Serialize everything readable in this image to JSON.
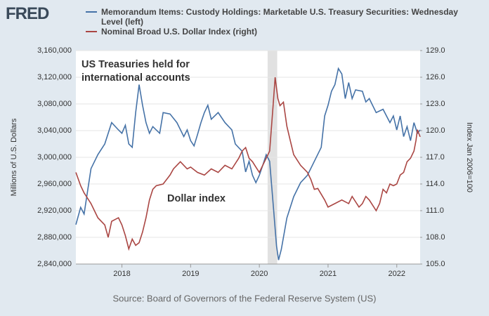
{
  "logo": "FRED",
  "chart_data": {
    "type": "line",
    "source": "Source: Board of Governors of the Federal Reserve System (US)",
    "ylabel": "Millions of U.S. Dollars",
    "y2label": "Index Jan 2006=100",
    "annotations": [
      {
        "lines": [
          "US Treasuries held for",
          "international accounts"
        ],
        "color": "#4572a7"
      },
      {
        "lines": [
          "Dollar index"
        ],
        "color": "#aa4643"
      }
    ],
    "xlim": [
      2017.33,
      2022.34
    ],
    "xticks": [
      2018,
      2019,
      2020,
      2021,
      2022
    ],
    "ylim": [
      2840000,
      3160000
    ],
    "yticks": [
      {
        "value": 2840000,
        "label": "2,840,000"
      },
      {
        "value": 2880000,
        "label": "2,880,000"
      },
      {
        "value": 2920000,
        "label": "2,920,000"
      },
      {
        "value": 2960000,
        "label": "2,960,000"
      },
      {
        "value": 3000000,
        "label": "3,000,000"
      },
      {
        "value": 3040000,
        "label": "3,040,000"
      },
      {
        "value": 3080000,
        "label": "3,080,000"
      },
      {
        "value": 3120000,
        "label": "3,120,000"
      },
      {
        "value": 3160000,
        "label": "3,160,000"
      }
    ],
    "y2lim": [
      105,
      129
    ],
    "y2ticks": [
      {
        "value": 105,
        "label": "105.0"
      },
      {
        "value": 108,
        "label": "108.0"
      },
      {
        "value": 111,
        "label": "111.0"
      },
      {
        "value": 114,
        "label": "114.0"
      },
      {
        "value": 117,
        "label": "117.0"
      },
      {
        "value": 120,
        "label": "120.0"
      },
      {
        "value": 123,
        "label": "123.0"
      },
      {
        "value": 126,
        "label": "126.0"
      },
      {
        "value": 129,
        "label": "129.0"
      }
    ],
    "grid": true,
    "recession": [
      2020.12,
      2020.26
    ],
    "recession_color": "#e1e1e1",
    "series": [
      {
        "name": "Memorandum Items: Custody Holdings: Marketable U.S. Treasury Securities: Wednesday Level (left)",
        "color": "#4572a7",
        "axis": "y",
        "x": [
          2017.33,
          2017.4,
          2017.45,
          2017.55,
          2017.65,
          2017.75,
          2017.85,
          2017.95,
          2018.0,
          2018.05,
          2018.1,
          2018.15,
          2018.2,
          2018.25,
          2018.3,
          2018.35,
          2018.4,
          2018.45,
          2018.55,
          2018.6,
          2018.7,
          2018.8,
          2018.9,
          2018.95,
          2019.0,
          2019.05,
          2019.1,
          2019.15,
          2019.2,
          2019.25,
          2019.3,
          2019.4,
          2019.5,
          2019.6,
          2019.65,
          2019.75,
          2019.8,
          2019.85,
          2019.9,
          2019.95,
          2020.0,
          2020.05,
          2020.1,
          2020.15,
          2020.2,
          2020.25,
          2020.28,
          2020.32,
          2020.4,
          2020.5,
          2020.6,
          2020.7,
          2020.8,
          2020.9,
          2020.95,
          2021.0,
          2021.05,
          2021.1,
          2021.15,
          2021.2,
          2021.25,
          2021.3,
          2021.35,
          2021.4,
          2021.5,
          2021.55,
          2021.6,
          2021.7,
          2021.8,
          2021.9,
          2021.95,
          2022.0,
          2022.05,
          2022.1,
          2022.15,
          2022.2,
          2022.25,
          2022.3,
          2022.34
        ],
        "values": [
          2899000,
          2925000,
          2915000,
          2983000,
          3004000,
          3020000,
          3052000,
          3041000,
          3036000,
          3048000,
          3020000,
          3015000,
          3067000,
          3109000,
          3078000,
          3052000,
          3036000,
          3046000,
          3036000,
          3067000,
          3065000,
          3052000,
          3031000,
          3041000,
          3025000,
          3017000,
          3034000,
          3052000,
          3067000,
          3078000,
          3057000,
          3067000,
          3052000,
          3041000,
          3020000,
          3009000,
          2978000,
          2994000,
          2973000,
          2962000,
          2973000,
          2988000,
          3004000,
          2994000,
          2931000,
          2867000,
          2846000,
          2862000,
          2909000,
          2941000,
          2962000,
          2973000,
          2994000,
          3015000,
          3062000,
          3078000,
          3099000,
          3109000,
          3133000,
          3125000,
          3088000,
          3112000,
          3088000,
          3101000,
          3099000,
          3083000,
          3088000,
          3067000,
          3072000,
          3052000,
          3062000,
          3041000,
          3062000,
          3031000,
          3046000,
          3025000,
          3052000,
          3036000,
          3041000
        ]
      },
      {
        "name": "Nominal Broad U.S. Dollar Index (right)",
        "color": "#aa4643",
        "axis": "y2",
        "x": [
          2017.33,
          2017.4,
          2017.45,
          2017.55,
          2017.65,
          2017.75,
          2017.8,
          2017.85,
          2017.95,
          2018.0,
          2018.05,
          2018.1,
          2018.15,
          2018.2,
          2018.25,
          2018.3,
          2018.35,
          2018.4,
          2018.45,
          2018.5,
          2018.6,
          2018.7,
          2018.75,
          2018.85,
          2018.95,
          2019.0,
          2019.1,
          2019.2,
          2019.3,
          2019.4,
          2019.5,
          2019.6,
          2019.7,
          2019.75,
          2019.8,
          2019.85,
          2019.9,
          2019.95,
          2020.0,
          2020.05,
          2020.1,
          2020.15,
          2020.2,
          2020.23,
          2020.27,
          2020.3,
          2020.35,
          2020.4,
          2020.45,
          2020.5,
          2020.6,
          2020.7,
          2020.75,
          2020.8,
          2020.85,
          2020.95,
          2021.0,
          2021.1,
          2021.2,
          2021.3,
          2021.35,
          2021.45,
          2021.5,
          2021.55,
          2021.6,
          2021.7,
          2021.75,
          2021.8,
          2021.85,
          2021.9,
          2021.95,
          2022.0,
          2022.05,
          2022.1,
          2022.15,
          2022.2,
          2022.25,
          2022.28,
          2022.3,
          2022.34
        ],
        "values": [
          115.3,
          113.8,
          113.0,
          111.8,
          110.2,
          109.4,
          108.0,
          109.8,
          110.2,
          109.4,
          108.2,
          106.7,
          107.8,
          107.1,
          107.4,
          108.6,
          110.2,
          112.2,
          113.4,
          113.8,
          114.0,
          115.0,
          115.7,
          116.5,
          115.7,
          115.9,
          115.3,
          115.0,
          115.7,
          115.3,
          116.1,
          115.7,
          116.9,
          117.7,
          118.1,
          116.9,
          116.5,
          115.9,
          115.3,
          116.1,
          116.9,
          117.7,
          122.8,
          126.0,
          123.6,
          122.8,
          123.2,
          120.5,
          118.9,
          117.3,
          116.1,
          115.3,
          114.5,
          113.4,
          113.5,
          112.2,
          111.4,
          111.8,
          112.2,
          111.8,
          112.6,
          111.4,
          111.8,
          112.6,
          112.2,
          111.0,
          111.8,
          113.4,
          113.0,
          114.0,
          113.8,
          114.0,
          115.0,
          115.3,
          116.5,
          116.9,
          117.7,
          118.9,
          120.1,
          119.3
        ]
      }
    ]
  }
}
